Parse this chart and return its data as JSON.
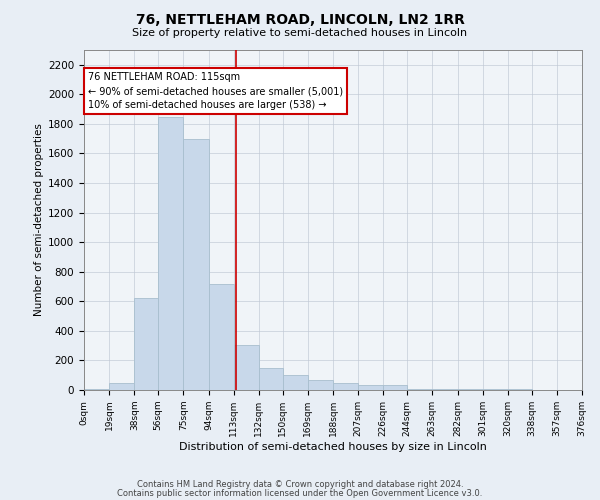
{
  "title": "76, NETTLEHAM ROAD, LINCOLN, LN2 1RR",
  "subtitle": "Size of property relative to semi-detached houses in Lincoln",
  "xlabel": "Distribution of semi-detached houses by size in Lincoln",
  "ylabel": "Number of semi-detached properties",
  "bar_color": "#c8d8ea",
  "bar_edge_color": "#a8bece",
  "property_line_x": 115,
  "property_line_color": "#cc0000",
  "annotation_box_color": "#cc0000",
  "bin_edges": [
    0,
    19,
    38,
    56,
    75,
    94,
    113,
    132,
    150,
    169,
    188,
    207,
    226,
    244,
    263,
    282,
    301,
    320,
    338,
    357,
    376
  ],
  "bar_heights": [
    10,
    50,
    620,
    1850,
    1700,
    720,
    305,
    150,
    100,
    70,
    50,
    35,
    35,
    5,
    5,
    5,
    5,
    5,
    2,
    2
  ],
  "annotation_title": "76 NETTLEHAM ROAD: 115sqm",
  "annotation_line1": "← 90% of semi-detached houses are smaller (5,001)",
  "annotation_line2": "10% of semi-detached houses are larger (538) →",
  "ylim": [
    0,
    2300
  ],
  "yticks": [
    0,
    200,
    400,
    600,
    800,
    1000,
    1200,
    1400,
    1600,
    1800,
    2000,
    2200
  ],
  "footer1": "Contains HM Land Registry data © Crown copyright and database right 2024.",
  "footer2": "Contains public sector information licensed under the Open Government Licence v3.0.",
  "background_color": "#e8eef5",
  "plot_bg_color": "#f0f4f8"
}
